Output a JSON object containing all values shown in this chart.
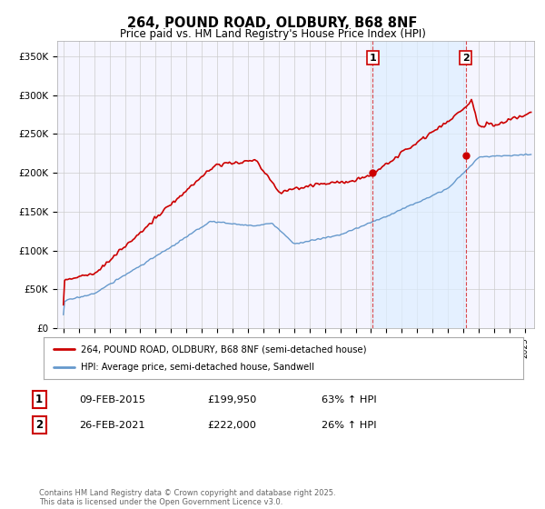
{
  "title_line1": "264, POUND ROAD, OLDBURY, B68 8NF",
  "title_line2": "Price paid vs. HM Land Registry's House Price Index (HPI)",
  "ylabel_ticks": [
    "£0",
    "£50K",
    "£100K",
    "£150K",
    "£200K",
    "£250K",
    "£300K",
    "£350K"
  ],
  "ytick_vals": [
    0,
    50000,
    100000,
    150000,
    200000,
    250000,
    300000,
    350000
  ],
  "ylim": [
    0,
    370000
  ],
  "xlim_start": 1994.6,
  "xlim_end": 2025.6,
  "red_color": "#cc0000",
  "blue_color": "#6699cc",
  "shade_color": "#ddeeff",
  "vline_color": "#cc0000",
  "vline1_x": 2015.1,
  "vline2_x": 2021.15,
  "label1_text": "1",
  "label2_text": "2",
  "legend_label_red": "264, POUND ROAD, OLDBURY, B68 8NF (semi-detached house)",
  "legend_label_blue": "HPI: Average price, semi-detached house, Sandwell",
  "table_row1": [
    "1",
    "09-FEB-2015",
    "£199,950",
    "63% ↑ HPI"
  ],
  "table_row2": [
    "2",
    "26-FEB-2021",
    "£222,000",
    "26% ↑ HPI"
  ],
  "footer": "Contains HM Land Registry data © Crown copyright and database right 2025.\nThis data is licensed under the Open Government Licence v3.0.",
  "bg_color": "#ffffff",
  "grid_color": "#cccccc",
  "plot_bg": "#f5f5ff"
}
